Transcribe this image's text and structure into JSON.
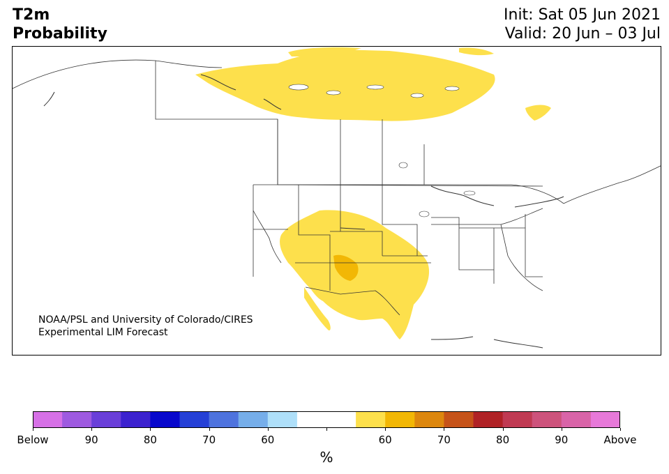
{
  "title": {
    "line1": "T2m",
    "line2": "Probability",
    "init": "Init: Sat 05 Jun 2021",
    "valid": "Valid: 20 Jun – 03 Jul"
  },
  "credit": {
    "line1": "NOAA/PSL and University of Colorado/CIRES",
    "line2": "Experimental LIM Forecast"
  },
  "colorbar": {
    "colors": [
      "#d670e6",
      "#9e5ae0",
      "#6a3fd9",
      "#3c22cf",
      "#0808cc",
      "#2540d6",
      "#4e73de",
      "#76aeea",
      "#aedff9",
      "#ffffff",
      "#ffffff",
      "#fde04c",
      "#f2b705",
      "#dd870e",
      "#c65319",
      "#b02226",
      "#c03a53",
      "#cd537c",
      "#d964a8",
      "#e779d9"
    ],
    "labels": [
      "Below",
      "90",
      "80",
      "70",
      "60",
      "",
      "60",
      "70",
      "80",
      "90",
      "Above"
    ],
    "unit": "%"
  },
  "map_colors": {
    "prob_60_70": "#fde04c",
    "prob_70_80": "#f2b705",
    "land": "#ffffff",
    "border": "#333333"
  }
}
